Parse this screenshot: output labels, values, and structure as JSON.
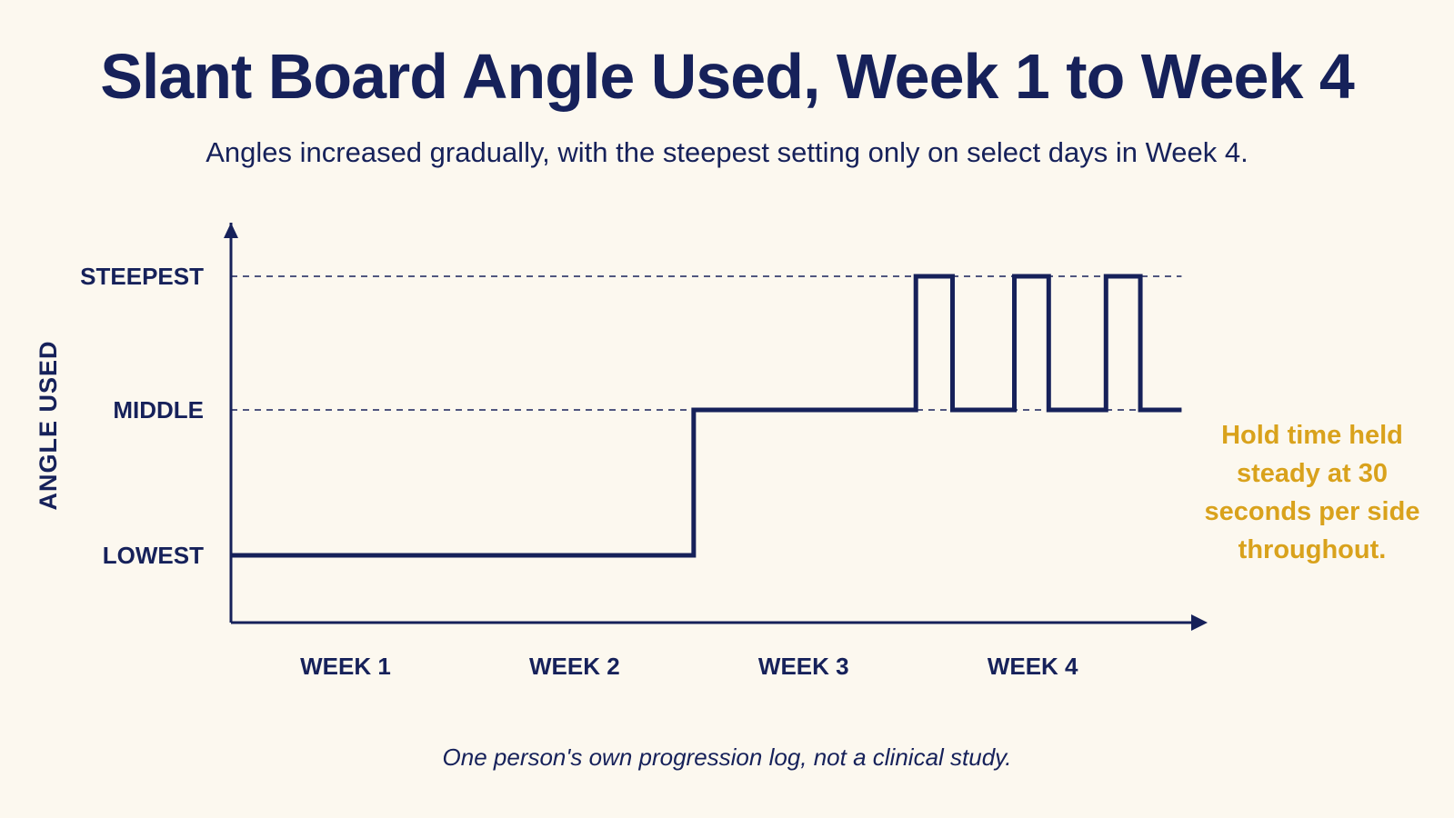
{
  "chart_data": {
    "type": "line",
    "step": true,
    "title": "Slant Board Angle Used, Week 1 to Week 4",
    "subtitle": "Angles increased gradually, with the steepest setting only on select days in Week 4.",
    "ylabel": "ANGLE USED",
    "xlabel": "",
    "y_levels": [
      "LOWEST",
      "MIDDLE",
      "STEEPEST"
    ],
    "x_ticks": [
      "WEEK 1",
      "WEEK 2",
      "WEEK 3",
      "WEEK 4"
    ],
    "xlim": [
      0,
      4.2
    ],
    "reference_lines": [
      "MIDDLE",
      "STEEPEST"
    ],
    "grid": false,
    "series": [
      {
        "points": [
          {
            "x": 0,
            "y": "LOWEST"
          },
          {
            "x": 2.02,
            "y": "MIDDLE"
          },
          {
            "x": 2.99,
            "y": "STEEPEST"
          },
          {
            "x": 3.15,
            "y": "MIDDLE"
          },
          {
            "x": 3.42,
            "y": "STEEPEST"
          },
          {
            "x": 3.57,
            "y": "MIDDLE"
          },
          {
            "x": 3.82,
            "y": "STEEPEST"
          },
          {
            "x": 3.97,
            "y": "MIDDLE"
          }
        ],
        "x_end": 4.15,
        "color": "#16215a"
      }
    ],
    "annotation": "Hold time held steady at 30 seconds per side throughout.",
    "footnote": "One person's own progression log, not a clinical study."
  },
  "colors": {
    "background": "#fcf8ef",
    "ink": "#16215a",
    "accent": "#d9a21c"
  }
}
